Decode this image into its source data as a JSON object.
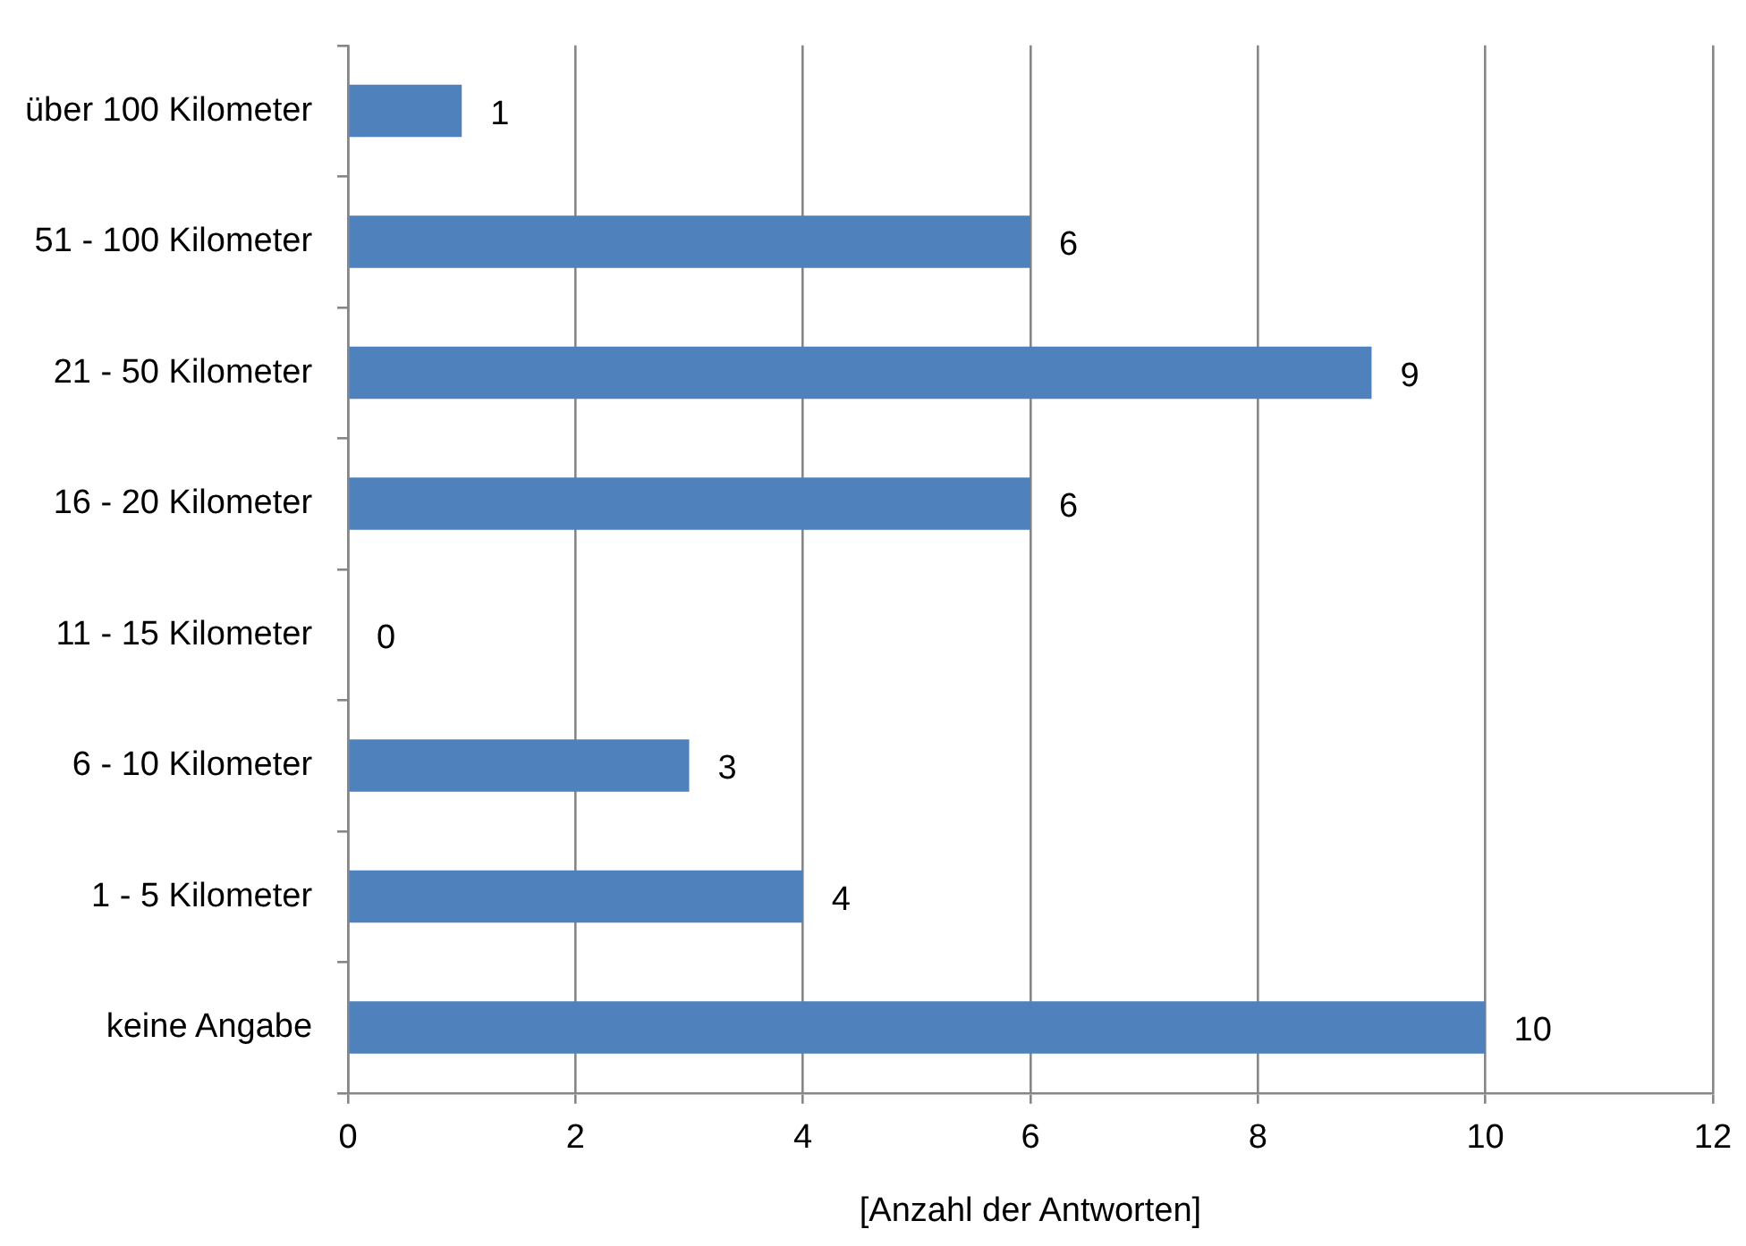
{
  "chart_data": {
    "type": "bar",
    "orientation": "horizontal",
    "xlabel": "[Anzahl der Antworten]",
    "categories": [
      "über 100 Kilometer",
      "51 - 100 Kilometer",
      "21 - 50 Kilometer",
      "16 - 20 Kilometer",
      "11 - 15 Kilometer",
      "6 - 10 Kilometer",
      "1 - 5 Kilometer",
      "keine Angabe"
    ],
    "values": [
      1,
      6,
      9,
      6,
      0,
      3,
      4,
      10
    ],
    "color": "#4f81bd",
    "xlim": [
      0,
      12
    ],
    "xticks": [
      0,
      2,
      4,
      6,
      8,
      10,
      12
    ],
    "grid": "x",
    "data_labels": true
  }
}
